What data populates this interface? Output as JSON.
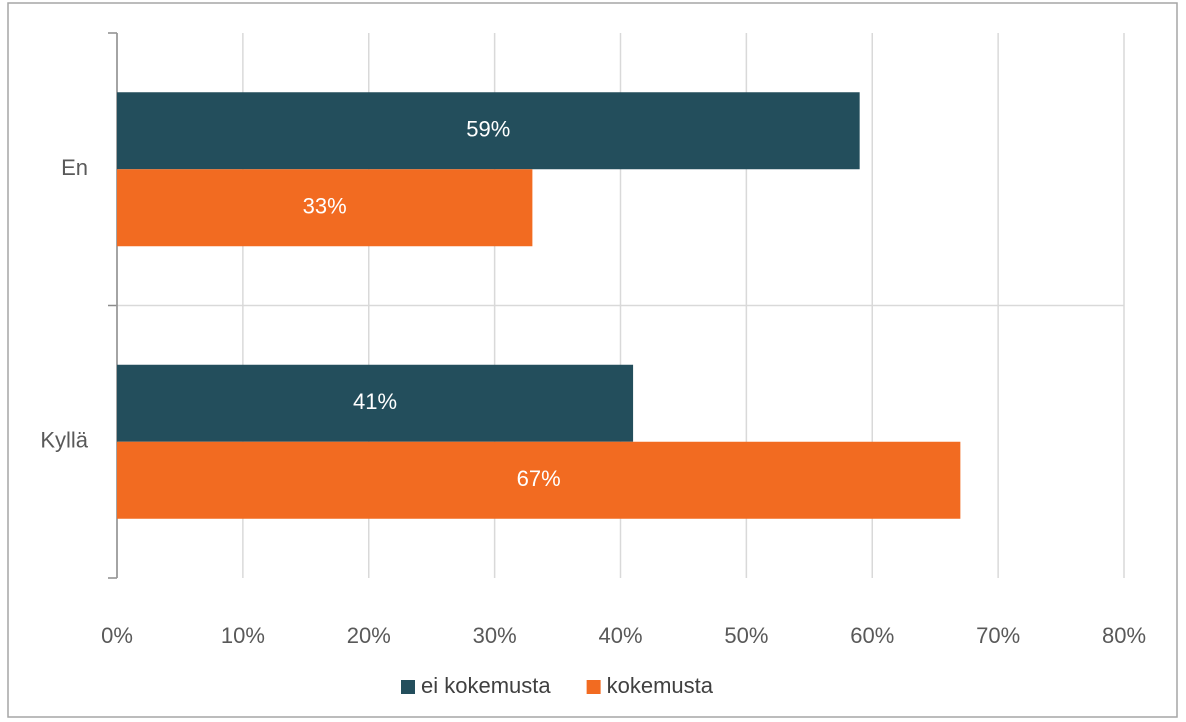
{
  "chart_data": {
    "type": "hbar",
    "categories": [
      "En",
      "Kyllä"
    ],
    "series": [
      {
        "name": "ei kokemusta",
        "color": "#234e5c",
        "values": [
          59,
          41
        ],
        "value_labels": [
          "59%",
          "41%"
        ]
      },
      {
        "name": "kokemusta",
        "color": "#f26b21",
        "values": [
          33,
          67
        ],
        "value_labels": [
          "33%",
          "67%"
        ]
      }
    ],
    "xlim": [
      0,
      80
    ],
    "xticks": [
      {
        "value": 0,
        "label": "0%"
      },
      {
        "value": 10,
        "label": "10%"
      },
      {
        "value": 20,
        "label": "20%"
      },
      {
        "value": 30,
        "label": "30%"
      },
      {
        "value": 40,
        "label": "40%"
      },
      {
        "value": 50,
        "label": "50%"
      },
      {
        "value": 60,
        "label": "60%"
      },
      {
        "value": 70,
        "label": "70%"
      },
      {
        "value": 80,
        "label": "80%"
      }
    ],
    "grid": true,
    "legend": "bottom"
  }
}
